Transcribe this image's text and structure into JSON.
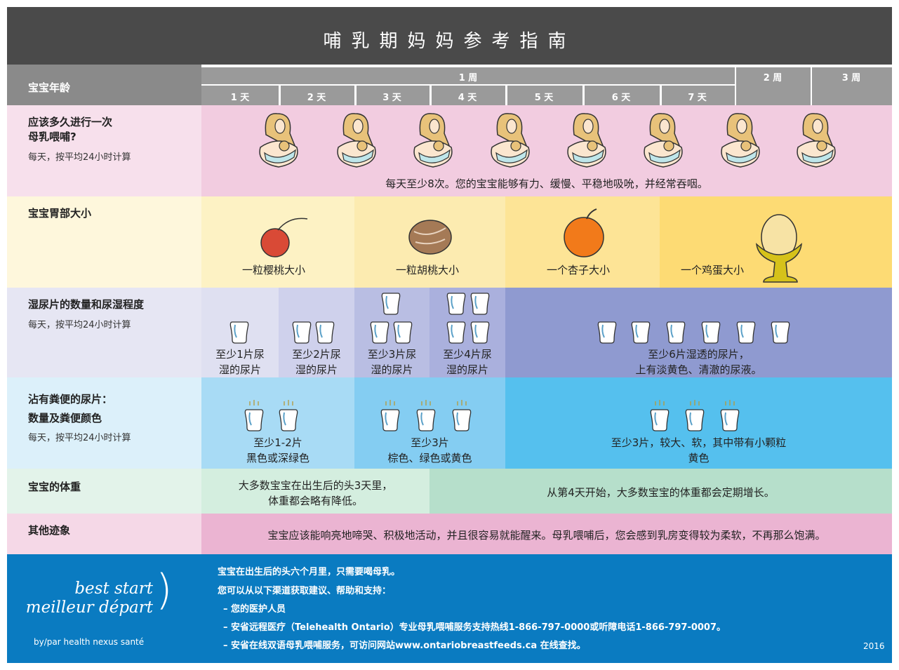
{
  "title": "哺乳期妈妈参考指南",
  "header": {
    "label": "宝宝年龄",
    "week1": "1 周",
    "week2": "2 周",
    "week3": "3 周",
    "days": [
      "1 天",
      "2 天",
      "3 天",
      "4 天",
      "5 天",
      "6 天",
      "7 天"
    ]
  },
  "feeding": {
    "label": "应该多久进行一次\n母乳喂哺?",
    "sub": "每天，按平均24小时计算",
    "text": "每天至少8次。您的宝宝能够有力、缓慢、平稳地吸吮，并经常吞咽。"
  },
  "stomach": {
    "label": "宝宝胃部大小",
    "items": [
      "一粒樱桃大小",
      "一粒胡桃大小",
      "一个杏子大小",
      "一个鸡蛋大小"
    ]
  },
  "wet": {
    "label": "湿尿片的数量和尿湿程度",
    "sub": "每天，按平均24小时计算",
    "items": [
      "至少1片尿\n湿的尿片",
      "至少2片尿\n湿的尿片",
      "至少3片尿\n湿的尿片",
      "至少4片尿\n湿的尿片",
      "至少6片湿透的尿片，\n上有淡黄色、清澈的尿液。"
    ]
  },
  "stool": {
    "label": "沾有粪便的尿片：\n数量及粪便颜色",
    "sub": "每天，按平均24小时计算",
    "items": [
      "至少1-2片\n黑色或深绿色",
      "至少3片\n棕色、绿色或黄色",
      "至少3片，较大、软，其中带有小颗粒\n黄色"
    ]
  },
  "weight": {
    "label": "宝宝的体重",
    "items": [
      "大多数宝宝在出生后的头3天里，\n体重都会略有降低。",
      "从第4天开始，大多数宝宝的体重都会定期增长。"
    ]
  },
  "other": {
    "label": "其他迹象",
    "text": "宝宝应该能响亮地啼哭、积极地活动，并且很容易就能醒来。母乳喂哺后，您会感到乳房变得较为柔软，不再那么饱满。"
  },
  "footer": {
    "logo_line1": "best start",
    "logo_line2": "meilleur départ",
    "logo_by": "by/par health nexus santé",
    "lines": [
      "宝宝在出生后的头六个月里，只需要喝母乳。",
      "您可以从以下渠道获取建议、帮助和支持：",
      "– 您的医护人员",
      "– 安省远程医疗（Telehealth Ontario）专业母乳喂哺服务支持热线1-866-797-0000或听障电话1-866-797-0007。",
      "– 安省在线双语母乳喂哺服务，可访问网站www.ontariobreastfeeds.ca 在线查找。"
    ],
    "year": "2016"
  }
}
